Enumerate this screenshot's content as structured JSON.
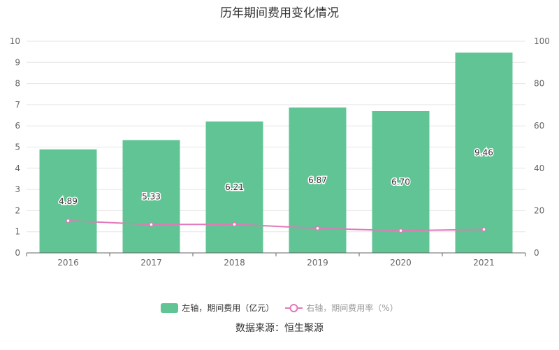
{
  "title": "历年期间费用变化情况",
  "source": "数据来源：恒生聚源",
  "legend": {
    "bar_label": "左轴，期间费用（亿元）",
    "line_label": "右轴，期间费用率（%）"
  },
  "colors": {
    "bar": "#61c494",
    "line": "#e07ab8",
    "grid": "#e6e6e6",
    "axis": "#666666",
    "text": "#333333"
  },
  "chart_data": {
    "type": "bar",
    "categories": [
      "2016",
      "2017",
      "2018",
      "2019",
      "2020",
      "2021"
    ],
    "series": [
      {
        "type": "bar",
        "axis": "left",
        "values": [
          4.89,
          5.33,
          6.21,
          6.87,
          6.7,
          9.46
        ],
        "labels": [
          "4.89",
          "5.33",
          "6.21",
          "6.87",
          "6.70",
          "9.46"
        ]
      },
      {
        "type": "line",
        "axis": "right",
        "values": [
          15.2,
          13.4,
          13.5,
          11.6,
          10.5,
          11.1
        ]
      }
    ],
    "y_left": {
      "min": 0,
      "max": 10,
      "ticks": [
        "0",
        "1",
        "2",
        "3",
        "4",
        "5",
        "6",
        "7",
        "8",
        "9",
        "10"
      ]
    },
    "y_right": {
      "min": 0,
      "max": 100,
      "ticks": [
        "0",
        "20",
        "40",
        "60",
        "80",
        "100"
      ]
    },
    "grid": true,
    "legend_position": "bottom"
  }
}
